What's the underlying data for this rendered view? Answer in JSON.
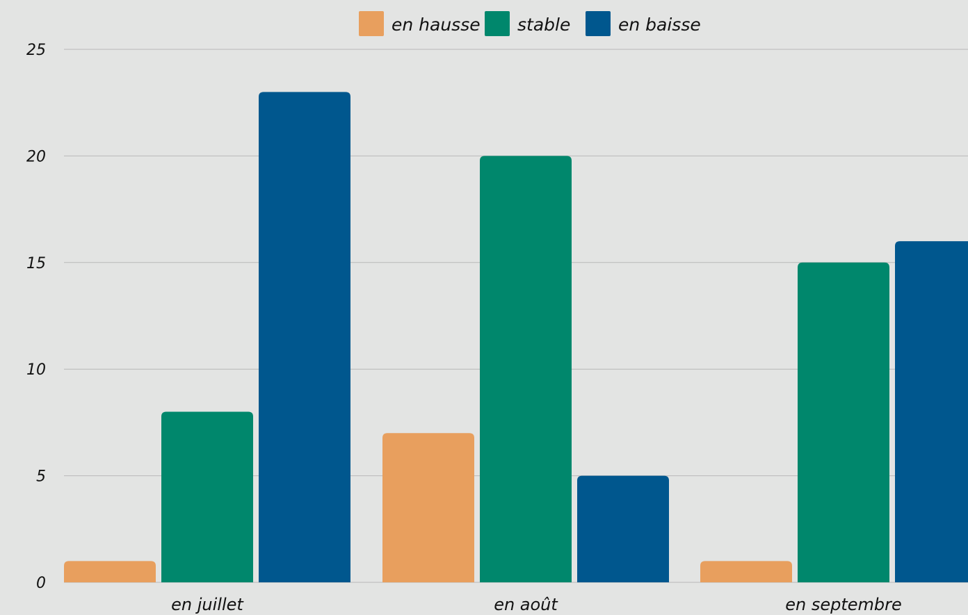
{
  "chart_data": {
    "type": "bar",
    "categories": [
      "en juillet",
      "en août",
      "en septembre"
    ],
    "series": [
      {
        "name": "en hausse",
        "values": [
          1,
          7,
          1
        ],
        "color": "#e89f5e"
      },
      {
        "name": "stable",
        "values": [
          8,
          20,
          15
        ],
        "color": "#00876c"
      },
      {
        "name": "en baisse",
        "values": [
          23,
          5,
          16
        ],
        "color": "#00578e"
      }
    ],
    "ylim": [
      0,
      25
    ],
    "yticks": [
      "0",
      "5",
      "10",
      "15",
      "20",
      "25"
    ],
    "grid": true,
    "legend_position": "top-center",
    "gridline_color": "#b8b8b8"
  }
}
